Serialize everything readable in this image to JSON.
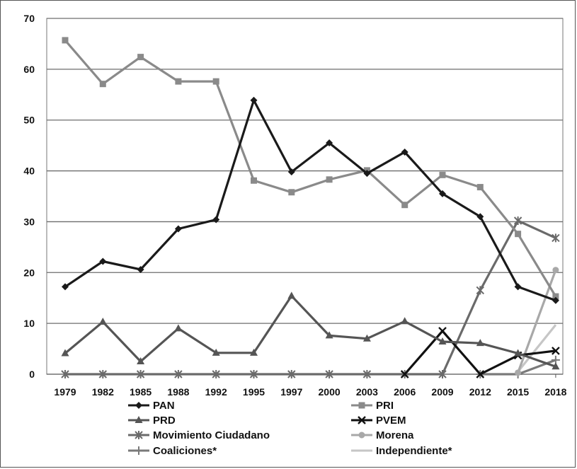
{
  "chart_data": {
    "type": "line",
    "title": "",
    "xlabel": "",
    "ylabel": "",
    "ylim": [
      0,
      70
    ],
    "yticks": [
      "0",
      "10",
      "20",
      "30",
      "40",
      "50",
      "60",
      "70"
    ],
    "grid": "horizontal",
    "legend_position": "bottom",
    "categories": [
      "1979",
      "1982",
      "1985",
      "1988",
      "1992",
      "1995",
      "1997",
      "2000",
      "2003",
      "2006",
      "2009",
      "2012",
      "2015",
      "2018"
    ],
    "series": [
      {
        "name": "PAN",
        "color": "#1a1a1a",
        "marker": "diamond",
        "values": [
          17.2,
          22.2,
          20.6,
          28.6,
          30.4,
          53.9,
          39.8,
          45.5,
          39.5,
          43.7,
          35.5,
          31.0,
          17.2,
          14.5
        ]
      },
      {
        "name": "PRI",
        "color": "#8a8a8a",
        "marker": "square",
        "values": [
          65.7,
          57.1,
          62.4,
          57.6,
          57.6,
          38.1,
          35.8,
          38.3,
          40.1,
          33.3,
          39.2,
          36.8,
          27.6,
          15.3
        ]
      },
      {
        "name": "PRD",
        "color": "#555555",
        "marker": "triangle",
        "values": [
          4.1,
          10.3,
          2.5,
          9.0,
          4.2,
          4.2,
          15.4,
          7.6,
          7.0,
          10.4,
          6.4,
          6.1,
          4.1,
          1.5
        ]
      },
      {
        "name": "PVEM",
        "color": "#111111",
        "marker": "x",
        "values": [
          null,
          null,
          null,
          null,
          null,
          null,
          null,
          null,
          null,
          0,
          8.5,
          0,
          3.7,
          4.6
        ]
      },
      {
        "name": "Movimiento Ciudadano",
        "color": "#6a6a6a",
        "marker": "star",
        "values": [
          0,
          0,
          0,
          0,
          0,
          0,
          0,
          0,
          0,
          0,
          0,
          16.5,
          30.2,
          26.8
        ]
      },
      {
        "name": "Morena",
        "color": "#a8a8a8",
        "marker": "circle",
        "values": [
          null,
          null,
          null,
          null,
          null,
          null,
          null,
          null,
          null,
          null,
          null,
          null,
          0.3,
          20.5
        ]
      },
      {
        "name": "Coaliciones*",
        "color": "#7a7a7a",
        "marker": "plus",
        "values": [
          null,
          null,
          null,
          null,
          null,
          null,
          null,
          null,
          null,
          null,
          null,
          0,
          0,
          2.8
        ]
      },
      {
        "name": "Independiente*",
        "color": "#c6c6c6",
        "marker": "none",
        "values": [
          null,
          null,
          null,
          null,
          null,
          null,
          null,
          null,
          null,
          null,
          null,
          null,
          0.5,
          9.7
        ]
      }
    ]
  }
}
